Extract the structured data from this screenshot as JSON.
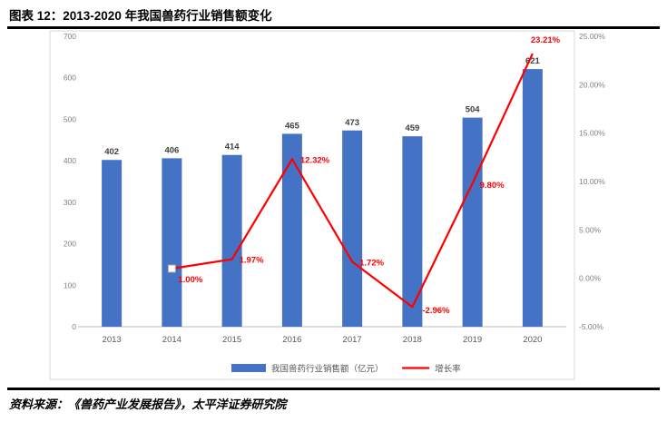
{
  "header": {
    "title": "图表 12：2013-2020 年我国兽药行业销售额变化"
  },
  "footer": {
    "source": "资料来源：《兽药产业发展报告》，太平洋证券研究院"
  },
  "chart_data": {
    "type": "bar+line",
    "title": "图表 12：2013-2020 年我国兽药行业销售额变化",
    "categories": [
      "2013",
      "2014",
      "2015",
      "2016",
      "2017",
      "2018",
      "2019",
      "2020"
    ],
    "series": [
      {
        "name": "我国兽药行业销售额（亿元）",
        "type": "bar",
        "axis": "left",
        "color": "#4472C4",
        "values": [
          402,
          406,
          414,
          465,
          473,
          459,
          504,
          621
        ]
      },
      {
        "name": "增长率",
        "type": "line",
        "axis": "right",
        "color": "#FF0000",
        "values": [
          null,
          1.0,
          1.97,
          12.32,
          1.72,
          -2.96,
          9.8,
          23.21
        ],
        "point_labels": [
          "",
          "1.00%",
          "1.97%",
          "12.32%",
          "1.72%",
          "-2.96%",
          "9.80%",
          "23.21%"
        ]
      }
    ],
    "left_axis": {
      "min": 0,
      "max": 700,
      "step": 100,
      "tick_labels": [
        "0",
        "100",
        "200",
        "300",
        "400",
        "500",
        "600",
        "700"
      ]
    },
    "right_axis": {
      "min": -5,
      "max": 25,
      "step": 5,
      "tick_labels": [
        "-5.00%",
        "0.00%",
        "5.00%",
        "10.00%",
        "15.00%",
        "20.00%",
        "25.00%"
      ]
    },
    "legend": [
      "我国兽药行业销售额（亿元）",
      "增长率"
    ],
    "legend_position": "bottom",
    "grid": false
  }
}
